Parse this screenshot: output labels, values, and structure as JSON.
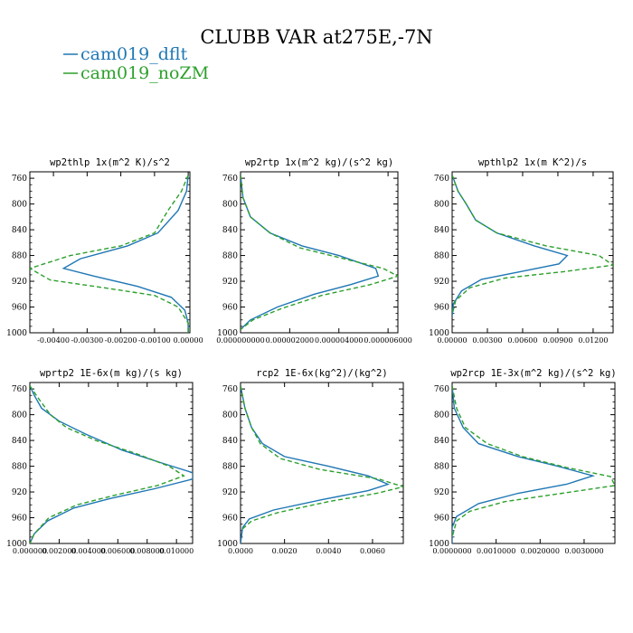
{
  "figure": {
    "title": "CLUBB VAR at275E,-7N",
    "legend": [
      {
        "label": "cam019_dflt",
        "color": "#1f77b4",
        "dash": "solid"
      },
      {
        "label": "cam019_noZM",
        "color": "#2ca02c",
        "dash": "dashed"
      }
    ]
  },
  "chart_data": [
    {
      "type": "line",
      "title": "wp2thlp   1x(m^2 K)/s^2",
      "ylim": [
        1000,
        750
      ],
      "yticks": [
        760,
        800,
        840,
        880,
        920,
        960,
        1000
      ],
      "xlim": [
        -0.0047,
        5e-05
      ],
      "xticks": [
        -0.004,
        -0.003,
        -0.002,
        -0.001,
        0.0
      ],
      "xticklabels": [
        "-0.00400",
        "-0.00300",
        "-0.00200",
        "-0.00100",
        "0.00000"
      ],
      "series": [
        {
          "name": "cam019_dflt",
          "points": [
            [
              0.0,
              755
            ],
            [
              -5e-05,
              780
            ],
            [
              -0.0003,
              810
            ],
            [
              -0.0009,
              845
            ],
            [
              -0.0018,
              865
            ],
            [
              -0.0032,
              885
            ],
            [
              -0.0037,
              900
            ],
            [
              -0.0028,
              912
            ],
            [
              -0.0015,
              928
            ],
            [
              -0.0005,
              945
            ],
            [
              -0.0001,
              965
            ],
            [
              0.0,
              985
            ],
            [
              0.0,
              1000
            ]
          ]
        },
        {
          "name": "cam019_noZM",
          "points": [
            [
              0.0,
              755
            ],
            [
              -0.0002,
              780
            ],
            [
              -0.0006,
              810
            ],
            [
              -0.001,
              845
            ],
            [
              -0.002,
              865
            ],
            [
              -0.0035,
              880
            ],
            [
              -0.0047,
              900
            ],
            [
              -0.0041,
              918
            ],
            [
              -0.0025,
              930
            ],
            [
              -0.001,
              942
            ],
            [
              -0.0003,
              960
            ],
            [
              0.0,
              985
            ],
            [
              0.0,
              1000
            ]
          ]
        }
      ]
    },
    {
      "type": "line",
      "title": "wp2rtp   1x(m^2 kg)/(s^2 kg)",
      "ylim": [
        1000,
        750
      ],
      "yticks": [
        760,
        800,
        840,
        880,
        920,
        960,
        1000
      ],
      "xlim": [
        0.0,
        6.4e-06
      ],
      "xticks": [
        0.0,
        2e-06,
        4e-06,
        6e-06
      ],
      "xticklabels": [
        "0.000000000",
        "0.000002000",
        "0.000004000",
        "0.000006000"
      ],
      "series": [
        {
          "name": "cam019_dflt",
          "points": [
            [
              0.0,
              755
            ],
            [
              1e-07,
              790
            ],
            [
              4e-07,
              820
            ],
            [
              1.2e-06,
              845
            ],
            [
              2.5e-06,
              865
            ],
            [
              4e-06,
              880
            ],
            [
              5.5e-06,
              900
            ],
            [
              5.6e-06,
              912
            ],
            [
              4.5e-06,
              925
            ],
            [
              3e-06,
              940
            ],
            [
              1.5e-06,
              960
            ],
            [
              4e-07,
              980
            ],
            [
              0.0,
              995
            ]
          ]
        },
        {
          "name": "cam019_noZM",
          "points": [
            [
              0.0,
              755
            ],
            [
              1e-07,
              790
            ],
            [
              4e-07,
              820
            ],
            [
              1.2e-06,
              845
            ],
            [
              2.4e-06,
              868
            ],
            [
              4.2e-06,
              885
            ],
            [
              5.8e-06,
              900
            ],
            [
              6.4e-06,
              912
            ],
            [
              5.3e-06,
              925
            ],
            [
              3.3e-06,
              942
            ],
            [
              1.7e-06,
              962
            ],
            [
              5e-07,
              980
            ],
            [
              0.0,
              995
            ]
          ]
        }
      ]
    },
    {
      "type": "line",
      "title": "wpthlp2   1x(m K^2)/s",
      "ylim": [
        1000,
        750
      ],
      "yticks": [
        760,
        800,
        840,
        880,
        920,
        960,
        1000
      ],
      "xlim": [
        0.0,
        0.0137
      ],
      "xticks": [
        0.0,
        0.003,
        0.006,
        0.009,
        0.012
      ],
      "xticklabels": [
        "0.00000",
        "0.00300",
        "0.00600",
        "0.00900",
        "0.01200"
      ],
      "series": [
        {
          "name": "cam019_dflt",
          "points": [
            [
              0.0,
              755
            ],
            [
              0.0005,
              780
            ],
            [
              0.0012,
              800
            ],
            [
              0.002,
              825
            ],
            [
              0.0038,
              845
            ],
            [
              0.007,
              865
            ],
            [
              0.0098,
              880
            ],
            [
              0.0091,
              893
            ],
            [
              0.0058,
              905
            ],
            [
              0.0025,
              917
            ],
            [
              0.0008,
              935
            ],
            [
              0.0001,
              955
            ],
            [
              0.0,
              975
            ]
          ]
        },
        {
          "name": "cam019_noZM",
          "points": [
            [
              0.0,
              755
            ],
            [
              0.0005,
              780
            ],
            [
              0.0012,
              800
            ],
            [
              0.002,
              825
            ],
            [
              0.0038,
              845
            ],
            [
              0.008,
              865
            ],
            [
              0.0125,
              880
            ],
            [
              0.0137,
              895
            ],
            [
              0.0095,
              905
            ],
            [
              0.0045,
              915
            ],
            [
              0.0015,
              930
            ],
            [
              0.0003,
              950
            ],
            [
              0.0,
              972
            ]
          ]
        }
      ]
    },
    {
      "type": "line",
      "title": "wprtp2   1E-6x(m kg)/(s kg)",
      "ylim": [
        1000,
        750
      ],
      "yticks": [
        760,
        800,
        840,
        880,
        920,
        960,
        1000
      ],
      "xlim": [
        0.0,
        0.0111
      ],
      "xticks": [
        0.0,
        0.002,
        0.004,
        0.006,
        0.008,
        0.01
      ],
      "xticklabels": [
        "0.000000",
        "0.002000",
        "0.004000",
        "0.006000",
        "0.008000",
        "0.010000"
      ],
      "series": [
        {
          "name": "cam019_dflt",
          "points": [
            [
              0.0,
              755
            ],
            [
              0.0003,
              770
            ],
            [
              0.0008,
              790
            ],
            [
              0.002,
              810
            ],
            [
              0.0038,
              830
            ],
            [
              0.0063,
              855
            ],
            [
              0.009,
              875
            ],
            [
              0.0111,
              890
            ],
            [
              0.0111,
              900
            ],
            [
              0.0085,
              915
            ],
            [
              0.0055,
              930
            ],
            [
              0.003,
              945
            ],
            [
              0.0012,
              965
            ],
            [
              0.0003,
              985
            ],
            [
              0.0,
              1000
            ]
          ]
        },
        {
          "name": "cam019_noZM",
          "points": [
            [
              0.0,
              755
            ],
            [
              0.0006,
              775
            ],
            [
              0.0014,
              800
            ],
            [
              0.0025,
              820
            ],
            [
              0.0045,
              840
            ],
            [
              0.0072,
              860
            ],
            [
              0.0095,
              880
            ],
            [
              0.0105,
              895
            ],
            [
              0.0087,
              910
            ],
            [
              0.0058,
              925
            ],
            [
              0.0032,
              940
            ],
            [
              0.0013,
              960
            ],
            [
              0.0003,
              985
            ],
            [
              0.0,
              1000
            ]
          ]
        }
      ]
    },
    {
      "type": "line",
      "title": "rcp2   1E-6x(kg^2)/(kg^2)",
      "ylim": [
        1000,
        750
      ],
      "yticks": [
        760,
        800,
        840,
        880,
        920,
        960,
        1000
      ],
      "xlim": [
        0.0,
        0.0074
      ],
      "xticks": [
        0.0,
        0.002,
        0.004,
        0.006
      ],
      "xticklabels": [
        "0.0000",
        "0.0020",
        "0.0040",
        "0.0060"
      ],
      "series": [
        {
          "name": "cam019_dflt",
          "points": [
            [
              0.0,
              755
            ],
            [
              0.0002,
              790
            ],
            [
              0.0005,
              820
            ],
            [
              0.001,
              845
            ],
            [
              0.002,
              865
            ],
            [
              0.004,
              880
            ],
            [
              0.0058,
              895
            ],
            [
              0.0067,
              908
            ],
            [
              0.0058,
              918
            ],
            [
              0.0037,
              932
            ],
            [
              0.0015,
              948
            ],
            [
              0.0004,
              962
            ],
            [
              0.0001,
              975
            ],
            [
              0.0,
              1000
            ]
          ]
        },
        {
          "name": "cam019_noZM",
          "points": [
            [
              0.0,
              755
            ],
            [
              0.0002,
              790
            ],
            [
              0.0005,
              820
            ],
            [
              0.0009,
              845
            ],
            [
              0.0018,
              868
            ],
            [
              0.0036,
              885
            ],
            [
              0.0063,
              900
            ],
            [
              0.0074,
              912
            ],
            [
              0.0062,
              922
            ],
            [
              0.004,
              935
            ],
            [
              0.0017,
              952
            ],
            [
              0.0005,
              965
            ],
            [
              0.0,
              980
            ]
          ]
        }
      ]
    },
    {
      "type": "line",
      "title": "wp2rcp   1E-3x(m^2 kg)/(s^2 kg)",
      "ylim": [
        1000,
        750
      ],
      "yticks": [
        760,
        800,
        840,
        880,
        920,
        960,
        1000
      ],
      "xlim": [
        0.0,
        0.0037
      ],
      "xticks": [
        0.0,
        0.001,
        0.002,
        0.003
      ],
      "xticklabels": [
        "0.0000000",
        "0.0010000",
        "0.0020000",
        "0.0030000"
      ],
      "series": [
        {
          "name": "cam019_dflt",
          "points": [
            [
              0.0,
              755
            ],
            [
              5e-05,
              790
            ],
            [
              0.00025,
              820
            ],
            [
              0.0006,
              845
            ],
            [
              0.0015,
              865
            ],
            [
              0.0024,
              880
            ],
            [
              0.0032,
              895
            ],
            [
              0.0026,
              908
            ],
            [
              0.0015,
              922
            ],
            [
              0.0006,
              938
            ],
            [
              0.0001,
              958
            ],
            [
              0.0,
              975
            ],
            [
              0.0,
              1000
            ]
          ]
        },
        {
          "name": "cam019_noZM",
          "points": [
            [
              0.0,
              755
            ],
            [
              0.0001,
              790
            ],
            [
              0.0003,
              820
            ],
            [
              0.0008,
              845
            ],
            [
              0.0016,
              865
            ],
            [
              0.0026,
              882
            ],
            [
              0.0036,
              896
            ],
            [
              0.0037,
              910
            ],
            [
              0.0025,
              922
            ],
            [
              0.0012,
              935
            ],
            [
              0.0004,
              950
            ],
            [
              0.0001,
              965
            ],
            [
              0.0,
              990
            ]
          ]
        }
      ]
    }
  ]
}
